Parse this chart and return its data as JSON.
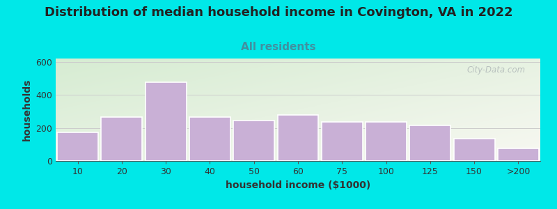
{
  "title": "Distribution of median household income in Covington, VA in 2022",
  "subtitle": "All residents",
  "xlabel": "household income ($1000)",
  "ylabel": "households",
  "bar_labels": [
    "10",
    "20",
    "30",
    "40",
    "50",
    "60",
    "75",
    "100",
    "125",
    "150",
    ">200"
  ],
  "bar_values": [
    175,
    265,
    475,
    265,
    245,
    280,
    235,
    235,
    215,
    135,
    75
  ],
  "bar_color": "#c9b0d6",
  "bar_edge_color": "#ffffff",
  "ylim": [
    0,
    620
  ],
  "yticks": [
    0,
    200,
    400,
    600
  ],
  "background_color": "#00e8e8",
  "plot_bg_top_left": "#d6ecd2",
  "plot_bg_bottom_right": "#f8f8f2",
  "title_fontsize": 13,
  "subtitle_fontsize": 11,
  "title_color": "#222222",
  "subtitle_color": "#4090a0",
  "axis_label_fontsize": 10,
  "tick_fontsize": 9,
  "watermark_text": "City-Data.com",
  "watermark_color": "#b0b8b8"
}
